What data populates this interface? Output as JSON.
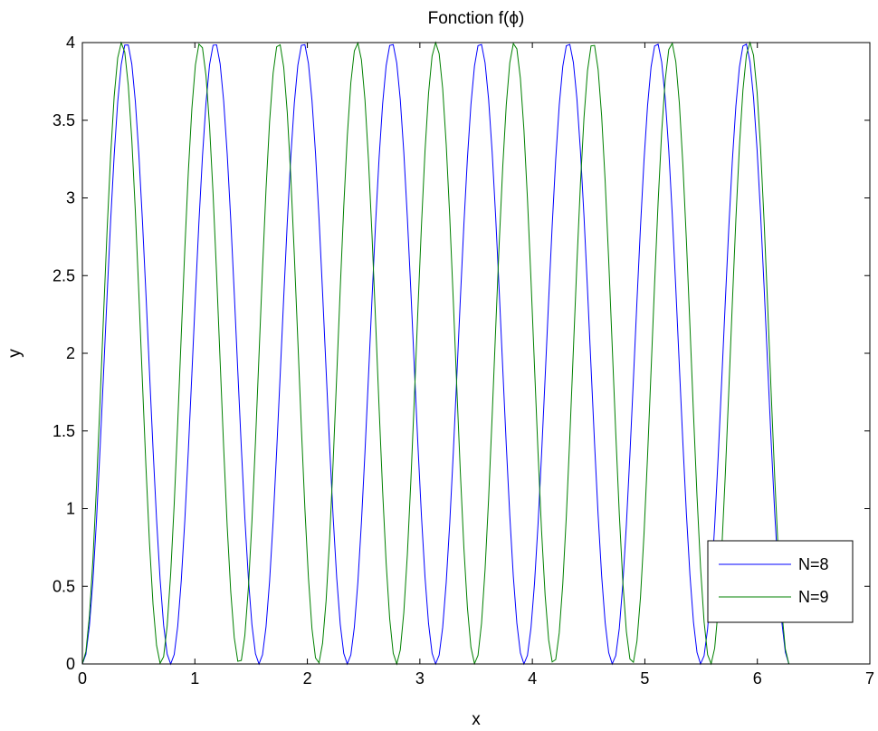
{
  "chart_data": {
    "type": "line",
    "title": "Fonction f(ϕ)",
    "xlabel": "x",
    "ylabel": "y",
    "xlim": [
      0,
      7
    ],
    "ylim": [
      0,
      4
    ],
    "x_ticks": [
      "0",
      "1",
      "2",
      "3",
      "4",
      "5",
      "6",
      "7"
    ],
    "y_ticks": [
      "0",
      "0.5",
      "1",
      "1.5",
      "2",
      "2.5",
      "3",
      "3.5",
      "4"
    ],
    "grid": false,
    "legend_position": "bottom-right",
    "x_domain": [
      0,
      6.2832
    ],
    "sample_step": 0.0314,
    "series": [
      {
        "name": "N=8",
        "color": "#0000ff",
        "formula": "4*sin^2(N*x/2)",
        "N": 8
      },
      {
        "name": "N=9",
        "color": "#008000",
        "formula": "4*sin^2(N*x/2)",
        "N": 9
      }
    ]
  }
}
